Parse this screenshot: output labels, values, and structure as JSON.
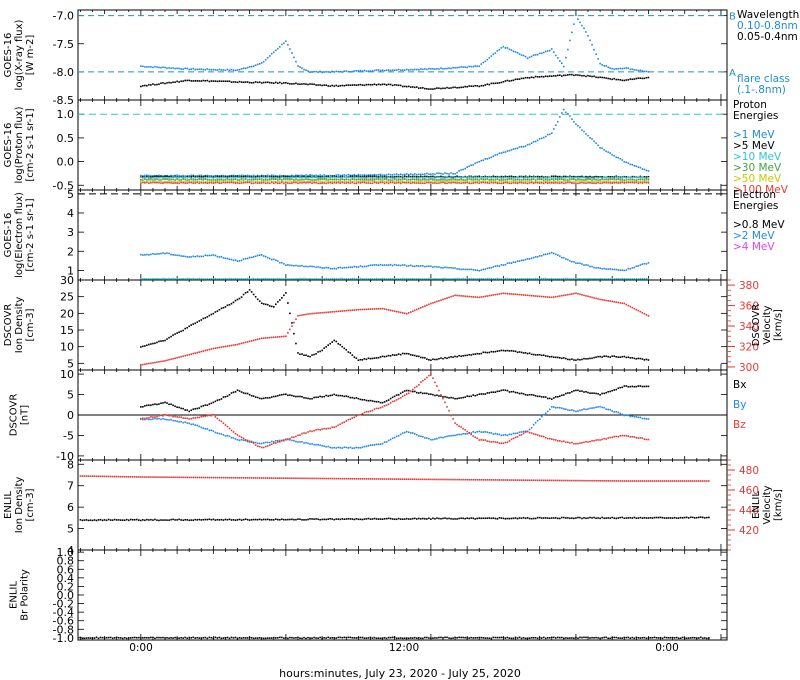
{
  "figure": {
    "xlabel": "hours:minutes, July 23, 2020 - July 25, 2020",
    "x_tick_labels": [
      "0:00",
      "12:00",
      "0:00"
    ]
  },
  "colors": {
    "black": "#000000",
    "blue": "#1e88e5",
    "cyan": "#26c6da",
    "green": "#43a047",
    "yellow": "#c8c800",
    "orange": "#ff8c00",
    "red": "#e53935",
    "magenta": "#e040fb",
    "xray_blue": "#1e88e5",
    "flare_cyan": "#1e90c8"
  },
  "chart_data": [
    {
      "id": "xray",
      "type": "scatter",
      "ylabel": [
        "GOES-16",
        "log(X-ray flux)",
        "[W m-2]"
      ],
      "ylim": [
        -8.5,
        -6.9
      ],
      "yticks": [
        -8.5,
        -8.0,
        -7.5,
        -7.0
      ],
      "ytick_labels": [
        "-8.5",
        "-8.0",
        "-7.5",
        "-7.0"
      ],
      "flare_class_lines": [
        {
          "value": -7.0,
          "label": "B"
        },
        {
          "value": -8.0,
          "label": "A"
        }
      ],
      "legend": {
        "title": "Wavelength",
        "entries": [
          {
            "name": "0.10-0.8nm",
            "color": "xray_blue"
          },
          {
            "name": "0.05-0.4nm",
            "color": "black"
          }
        ],
        "note": [
          "flare class",
          "(.1-.8nm)"
        ]
      },
      "series": [
        {
          "name": "0.10-0.8nm",
          "color": "xray_blue",
          "x": [
            0,
            4,
            8,
            10,
            12,
            13,
            14,
            16,
            20,
            24,
            28,
            30,
            32,
            34,
            35,
            36,
            37,
            38,
            39,
            40,
            42
          ],
          "y": [
            -7.9,
            -7.95,
            -7.97,
            -7.85,
            -7.45,
            -7.9,
            -8.0,
            -8.0,
            -7.97,
            -7.95,
            -7.9,
            -7.55,
            -7.75,
            -7.6,
            -7.9,
            -7.0,
            -7.35,
            -7.85,
            -7.95,
            -7.93,
            -8.0
          ]
        },
        {
          "name": "0.05-0.4nm",
          "color": "black",
          "x": [
            0,
            4,
            8,
            12,
            16,
            20,
            24,
            28,
            32,
            36,
            40,
            42
          ],
          "y": [
            -8.25,
            -8.15,
            -8.18,
            -8.2,
            -8.25,
            -8.22,
            -8.3,
            -8.25,
            -8.1,
            -8.05,
            -8.15,
            -8.1
          ]
        }
      ]
    },
    {
      "id": "proton",
      "type": "scatter",
      "ylabel": [
        "GOES-16",
        "log(Proton flux)",
        "[cm-2 s-1 sr-1]"
      ],
      "ylim": [
        -0.6,
        1.3
      ],
      "yticks": [
        -0.5,
        0.0,
        0.5,
        1.0
      ],
      "ytick_labels": [
        "-0.5",
        "0.0",
        "0.5",
        "1.0"
      ],
      "ref_line": 1.0,
      "legend": {
        "title": [
          "Proton",
          "Energies"
        ],
        "entries": [
          {
            "name": ">1 MeV",
            "color": "blue"
          },
          {
            "name": ">5 MeV",
            "color": "black"
          },
          {
            "name": ">10 MeV",
            "color": "cyan"
          },
          {
            "name": ">30 MeV",
            "color": "green"
          },
          {
            "name": ">50 MeV",
            "color": "yellow"
          },
          {
            "name": ">100 MeV",
            "color": "red"
          }
        ]
      },
      "series": [
        {
          "name": ">1 MeV",
          "color": "blue",
          "x": [
            0,
            10,
            20,
            26,
            28,
            30,
            32,
            34,
            35,
            36,
            38,
            40,
            42
          ],
          "y": [
            -0.3,
            -0.3,
            -0.28,
            -0.25,
            0.0,
            0.2,
            0.35,
            0.6,
            1.1,
            0.8,
            0.3,
            0.0,
            -0.2
          ]
        },
        {
          "name": ">5 MeV",
          "color": "black",
          "x": [
            0,
            42
          ],
          "y": [
            -0.32,
            -0.32
          ]
        },
        {
          "name": ">10 MeV",
          "color": "cyan",
          "x": [
            0,
            42
          ],
          "y": [
            -0.34,
            -0.34
          ]
        },
        {
          "name": ">30 MeV",
          "color": "green",
          "x": [
            0,
            42
          ],
          "y": [
            -0.38,
            -0.38
          ]
        },
        {
          "name": ">50 MeV",
          "color": "yellow",
          "x": [
            0,
            42
          ],
          "y": [
            -0.42,
            -0.42
          ]
        },
        {
          "name": ">100 MeV",
          "color": "red",
          "x": [
            0,
            42
          ],
          "y": [
            -0.45,
            -0.45
          ]
        }
      ]
    },
    {
      "id": "electron",
      "type": "scatter",
      "ylabel": [
        "GOES-16",
        "log(Electron flux)",
        "[cm-2 s-1 sr-1]"
      ],
      "ylim": [
        0.5,
        5.2
      ],
      "yticks": [
        1,
        2,
        3,
        4,
        5
      ],
      "ytick_labels": [
        "1",
        "2",
        "3",
        "4",
        "5"
      ],
      "ref_line": 5.0,
      "legend": {
        "title": [
          "Electron",
          "Energies"
        ],
        "entries": [
          {
            "name": ">0.8 MeV",
            "color": "black"
          },
          {
            "name": ">2 MeV",
            "color": "blue"
          },
          {
            "name": ">4 MeV",
            "color": "magenta"
          }
        ]
      },
      "series": [
        {
          "name": ">2 MeV",
          "color": "blue",
          "x": [
            0,
            2,
            4,
            6,
            8,
            10,
            12,
            16,
            20,
            24,
            28,
            32,
            34,
            36,
            38,
            40,
            42
          ],
          "y": [
            1.8,
            1.9,
            1.7,
            1.8,
            1.5,
            1.8,
            1.3,
            1.1,
            1.3,
            1.2,
            1.0,
            1.6,
            1.9,
            1.4,
            1.1,
            1.0,
            1.4
          ]
        },
        {
          "name": "",
          "color": "cyan",
          "x": [
            0,
            42
          ],
          "y": [
            0.55,
            0.55
          ]
        }
      ]
    },
    {
      "id": "dscovr_plasma",
      "type": "scatter",
      "ylabel": [
        "DSCOVR",
        "Ion Density",
        "[cm-3]"
      ],
      "ylim": [
        3,
        30
      ],
      "yticks": [
        5,
        10,
        15,
        20,
        25,
        30
      ],
      "ytick_labels": [
        "5",
        "10",
        "15",
        "20",
        "25",
        "30"
      ],
      "right_axis": {
        "label": [
          "DSCOVR",
          "Velocity",
          "[km/s]"
        ],
        "ylim": [
          297,
          385
        ],
        "ticks": [
          300,
          320,
          340,
          360,
          380
        ],
        "tick_labels": [
          "300",
          "320",
          "340",
          "360",
          "380"
        ],
        "color": "red"
      },
      "series": [
        {
          "name": "Ion Density",
          "color": "black",
          "axis": "left",
          "x": [
            0,
            2,
            4,
            6,
            7,
            8,
            9,
            10,
            11,
            12,
            13,
            14,
            15,
            16,
            18,
            20,
            22,
            24,
            26,
            28,
            30,
            32,
            34,
            36,
            38,
            40,
            42
          ],
          "y": [
            10,
            12,
            16,
            20,
            22,
            24,
            27,
            23,
            22,
            26,
            8,
            7,
            9,
            12,
            6,
            7,
            8,
            6,
            7,
            8,
            9,
            8,
            7,
            6,
            7,
            7,
            6
          ]
        },
        {
          "name": "Velocity",
          "color": "red",
          "axis": "right",
          "x": [
            0,
            2,
            4,
            6,
            8,
            10,
            12,
            13,
            14,
            16,
            18,
            20,
            22,
            24,
            26,
            28,
            30,
            32,
            34,
            36,
            38,
            40,
            42
          ],
          "y": [
            302,
            306,
            312,
            318,
            322,
            328,
            330,
            350,
            352,
            354,
            356,
            357,
            352,
            362,
            370,
            368,
            372,
            370,
            368,
            372,
            366,
            362,
            350
          ]
        }
      ]
    },
    {
      "id": "dscovr_mag",
      "type": "scatter",
      "ylabel": [
        "DSCOVR",
        "[nT]"
      ],
      "ylim": [
        -11,
        11
      ],
      "yticks": [
        -10,
        -5,
        0,
        5,
        10
      ],
      "ytick_labels": [
        "-10",
        "-5",
        "0",
        "5",
        "10"
      ],
      "zero_line": 0,
      "legend": {
        "entries": [
          {
            "name": "Bx",
            "color": "black"
          },
          {
            "name": "By",
            "color": "blue"
          },
          {
            "name": "Bz",
            "color": "red"
          }
        ]
      },
      "series": [
        {
          "name": "Bx",
          "color": "black",
          "x": [
            0,
            2,
            4,
            6,
            8,
            10,
            12,
            14,
            16,
            18,
            20,
            22,
            24,
            26,
            28,
            30,
            32,
            34,
            36,
            38,
            40,
            42
          ],
          "y": [
            2,
            3,
            1,
            3,
            6,
            4,
            5,
            4,
            5,
            4,
            3,
            6,
            5,
            4,
            5,
            6,
            5,
            4,
            6,
            5,
            7,
            7
          ]
        },
        {
          "name": "By",
          "color": "blue",
          "x": [
            0,
            2,
            4,
            6,
            8,
            10,
            12,
            14,
            16,
            18,
            20,
            22,
            24,
            26,
            28,
            30,
            32,
            34,
            36,
            38,
            40,
            42
          ],
          "y": [
            -1,
            -1,
            -2,
            -4,
            -6,
            -7,
            -6,
            -7,
            -8,
            -8,
            -7,
            -4,
            -6,
            -5,
            -4,
            -5,
            -4,
            2,
            1,
            2,
            0,
            -1
          ]
        },
        {
          "name": "Bz",
          "color": "red",
          "x": [
            0,
            2,
            4,
            6,
            8,
            10,
            12,
            14,
            16,
            18,
            20,
            22,
            24,
            26,
            28,
            30,
            32,
            34,
            36,
            38,
            40,
            42
          ],
          "y": [
            -1,
            0,
            -1,
            0,
            -5,
            -8,
            -6,
            -4,
            -3,
            0,
            2,
            5,
            10,
            -2,
            -6,
            -7,
            -4,
            -6,
            -7,
            -6,
            -5,
            -6
          ]
        }
      ]
    },
    {
      "id": "enlil_plasma",
      "type": "scatter",
      "ylabel": [
        "ENLIL",
        "Ion Density",
        "[cm-3]"
      ],
      "ylim": [
        4,
        8.2
      ],
      "yticks": [
        4,
        5,
        6,
        7,
        8
      ],
      "ytick_labels": [
        "4",
        "5",
        "6",
        "7",
        "8"
      ],
      "right_axis": {
        "label": [
          "ENLIL",
          "Velocity",
          "[km/s]"
        ],
        "ylim": [
          400,
          490
        ],
        "ticks": [
          420,
          440,
          460,
          480
        ],
        "tick_labels": [
          "420",
          "440",
          "460",
          "480"
        ],
        "color": "red"
      },
      "series": [
        {
          "name": "Ion Density",
          "color": "black",
          "axis": "left",
          "x": [
            -5,
            0,
            10,
            20,
            30,
            40,
            47
          ],
          "y": [
            5.4,
            5.4,
            5.42,
            5.45,
            5.48,
            5.5,
            5.52
          ]
        },
        {
          "name": "Velocity",
          "color": "red",
          "axis": "right",
          "x": [
            -5,
            0,
            10,
            20,
            30,
            40,
            47
          ],
          "y": [
            474,
            473,
            472,
            471,
            470,
            469,
            469
          ]
        }
      ]
    },
    {
      "id": "enlil_polarity",
      "type": "scatter",
      "ylabel": [
        "ENLIL",
        "Br Polarity"
      ],
      "ylim": [
        -1.05,
        1.05
      ],
      "yticks": [
        -1.0,
        -0.8,
        -0.6,
        -0.4,
        -0.2,
        0.0,
        0.2,
        0.4,
        0.6,
        0.8,
        1.0
      ],
      "ytick_labels": [
        "-1.0",
        "-0.8",
        "-0.6",
        "-0.4",
        "-0.2",
        "0.0",
        "0.2",
        "0.4",
        "0.6",
        "0.8",
        "1.0"
      ],
      "series": [
        {
          "name": "Br Polarity",
          "color": "black",
          "x": [
            -5,
            47
          ],
          "y": [
            -1.0,
            -1.0
          ]
        }
      ]
    }
  ]
}
